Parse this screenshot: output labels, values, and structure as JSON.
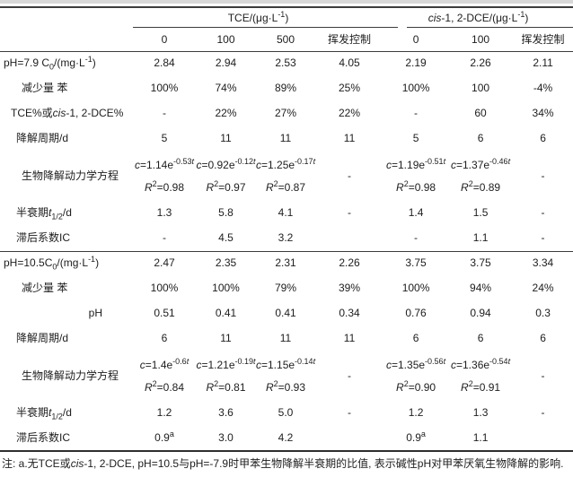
{
  "table": {
    "col_groups": [
      {
        "label": "TCE/(μg·L^{-1})"
      },
      {
        "label": "*cis*-1, 2-DCE/(μg·L^{-1})"
      }
    ],
    "sub_headers": [
      "0",
      "100",
      "500",
      "挥发控制",
      "0",
      "100",
      "挥发控制"
    ],
    "sections": [
      {
        "rows": [
          {
            "label": "pH=7.9 C_{0}/(mg·L^{-1})",
            "indent": 0,
            "values": [
              "2.84",
              "2.94",
              "2.53",
              "4.05",
              "2.19",
              "2.26",
              "2.11"
            ]
          },
          {
            "label": "减少量 苯",
            "indent": 3,
            "values": [
              "100%",
              "74%",
              "89%",
              "25%",
              "100%",
              "100",
              "-4%"
            ]
          },
          {
            "label": "TCE%或*cis*-1, 2-DCE%",
            "indent": 1,
            "values": [
              "-",
              "22%",
              "27%",
              "22%",
              "-",
              "60",
              "34%"
            ]
          },
          {
            "label": "降解周期/d",
            "indent": 2,
            "values": [
              "5",
              "11",
              "11",
              "11",
              "5",
              "6",
              "6"
            ]
          },
          {
            "label": "生物降解动力学方程",
            "indent": 3,
            "type": "eq",
            "values": [
              [
                "*c*=1.14e^{-0.53*t*}",
                "*R*^{2}=0.98"
              ],
              [
                "*c*=0.92e^{-0.12*t*}",
                "*R*^{2}=0.97"
              ],
              [
                "*c*=1.25e^{-0.17*t*}",
                "*R*^{2}=0.87"
              ],
              "-",
              [
                "*c*=1.19e^{-0.51*t*}",
                "*R*^{2}=0.98"
              ],
              [
                "*c*=1.37e^{-0.46*t*}",
                "*R*^{2}=0.89"
              ],
              "-"
            ]
          },
          {
            "label": "半衰期*t*_{1/2}/d",
            "indent": 2,
            "values": [
              "1.3",
              "5.8",
              "4.1",
              "-",
              "1.4",
              "1.5",
              "-"
            ]
          },
          {
            "label": "滞后系数IC",
            "indent": 2,
            "values": [
              "-",
              "4.5",
              "3.2",
              "",
              "-",
              "1.1",
              "-"
            ]
          }
        ]
      },
      {
        "rows": [
          {
            "label": "pH=10.5C_{0}/(mg·L^{-1})",
            "indent": 0,
            "values": [
              "2.47",
              "2.35",
              "2.31",
              "2.26",
              "3.75",
              "3.75",
              "3.34"
            ]
          },
          {
            "label": "减少量 苯",
            "indent": 3,
            "values": [
              "100%",
              "100%",
              "79%",
              "39%",
              "100%",
              "94%",
              "24%"
            ]
          },
          {
            "label": "pH",
            "indent": 0,
            "align": "right",
            "values": [
              "0.51",
              "0.41",
              "0.41",
              "0.34",
              "0.76",
              "0.94",
              "0.3"
            ]
          },
          {
            "label": "降解周期/d",
            "indent": 2,
            "values": [
              "6",
              "11",
              "11",
              "11",
              "6",
              "6",
              "6"
            ]
          },
          {
            "label": "生物降解动力学方程",
            "indent": 3,
            "type": "eq",
            "values": [
              [
                "*c*=1.4e^{-0.6*t*}",
                "*R*^{2}=0.84"
              ],
              [
                "*c*=1.21e^{-0.19*t*}",
                "*R*^{2}=0.81"
              ],
              [
                "*c*=1.15e^{-0.14*t*}",
                "*R*^{2}=0.93"
              ],
              "-",
              [
                "*c*=1.35e^{-0.56*t*}",
                "*R*^{2}=0.90"
              ],
              [
                "*c*=1.36e^{-0.54*t*}",
                "*R*^{2}=0.91"
              ],
              "-"
            ]
          },
          {
            "label": "半衰期*t*_{1/2}/d",
            "indent": 2,
            "values": [
              "1.2",
              "3.6",
              "5.0",
              "-",
              "1.2",
              "1.3",
              "-"
            ]
          },
          {
            "label": "滞后系数IC",
            "indent": 2,
            "values": [
              "0.9^{a}",
              "3.0",
              "4.2",
              "",
              "0.9^{a}",
              "1.1",
              ""
            ]
          }
        ]
      }
    ],
    "footnote": "注: a.无TCE或*cis*-1, 2-DCE, pH=10.5与pH=-7.9时甲苯生物降解半衰期的比值, 表示碱性pH对甲苯厌氧生物降解的影响."
  }
}
